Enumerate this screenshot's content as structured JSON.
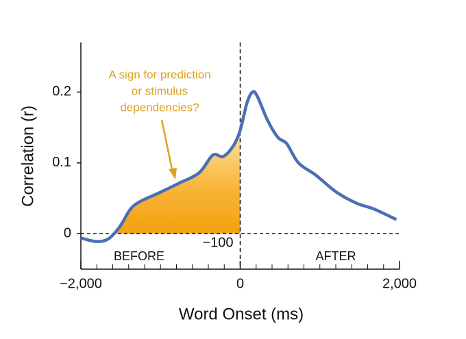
{
  "chart_data": {
    "type": "line",
    "x_label": "Word Onset (ms)",
    "y_label": "Correlation (r)",
    "x": [
      -2000,
      -1806,
      -1651,
      -1505,
      -1376,
      -1247,
      -1032,
      -774,
      -516,
      -344,
      -215,
      -86,
      0,
      86,
      155,
      215,
      344,
      473,
      585,
      731,
      946,
      1204,
      1462,
      1677,
      1961
    ],
    "series": [
      {
        "name": "Correlation",
        "color": "#4a6fb5",
        "values": [
          -0.006,
          -0.011,
          -0.007,
          0.011,
          0.035,
          0.046,
          0.057,
          0.071,
          0.086,
          0.111,
          0.109,
          0.124,
          0.146,
          0.185,
          0.2,
          0.194,
          0.16,
          0.136,
          0.127,
          0.1,
          0.083,
          0.059,
          0.043,
          0.035,
          0.02
        ]
      }
    ],
    "area_color": "#f5a312",
    "xlim": [
      -2000,
      2000
    ],
    "ylim": [
      -0.05,
      0.27
    ],
    "xticks": [
      {
        "value": -2000,
        "label": "−2,000"
      },
      0,
      {
        "value": 2000,
        "label": "2,000"
      }
    ],
    "xminorticks": [
      -1800,
      -1600,
      -1400,
      -1200,
      -1000,
      -800,
      -600,
      -400,
      -200,
      200,
      400,
      600,
      800,
      1000,
      1200,
      1400,
      1600,
      1800
    ],
    "yticks": [
      0,
      0.1,
      0.2
    ],
    "annotation": [
      "A sign for prediction",
      "or stimulus",
      "dependencies?"
    ],
    "annotation_color": "#e0a01e",
    "onset_label": "−100",
    "before_label": "BEFORE",
    "after_label": "AFTER"
  }
}
